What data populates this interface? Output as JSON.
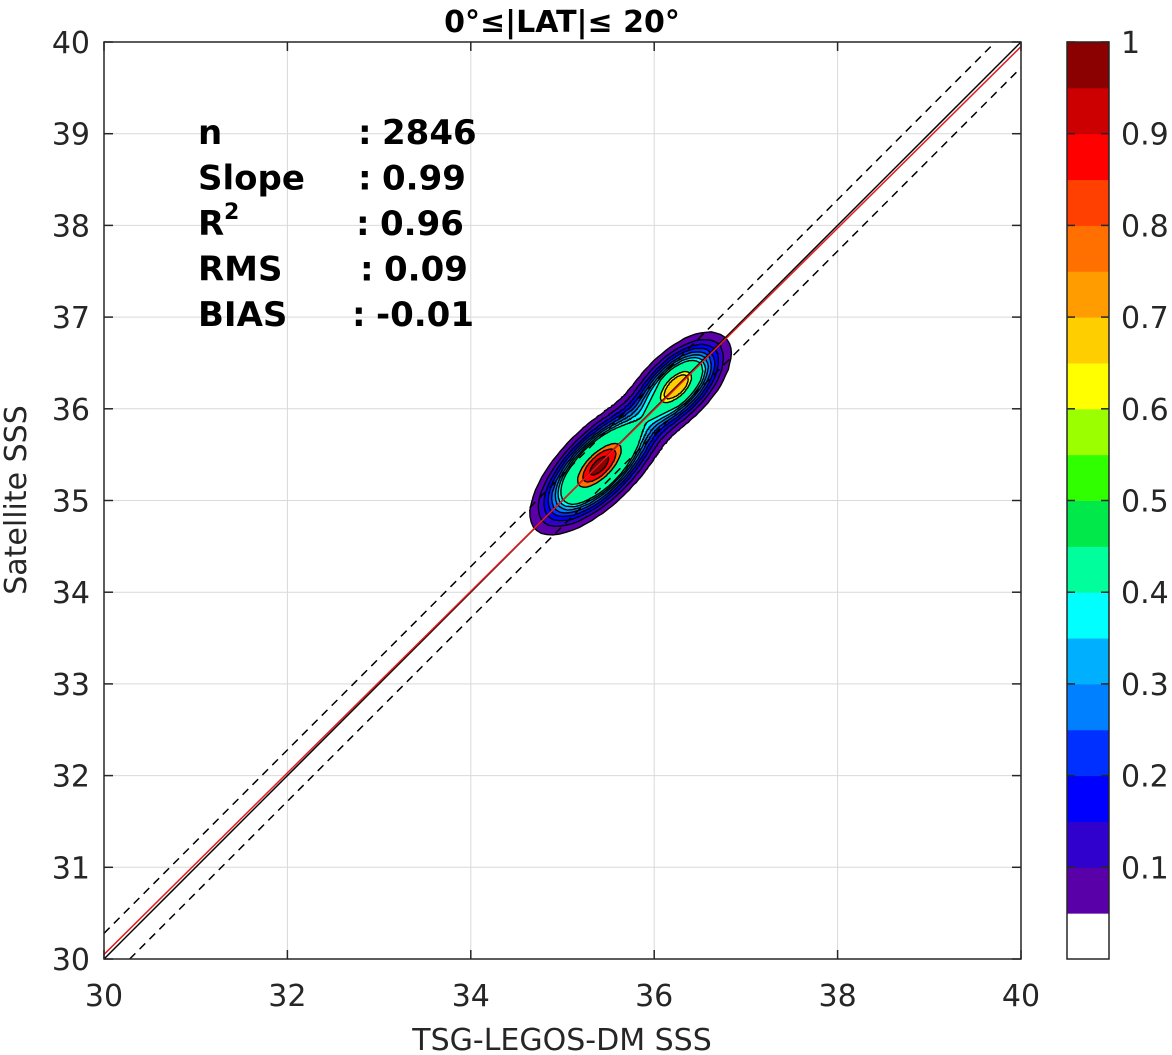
{
  "chart_data": {
    "type": "density-contour",
    "title": "0°≤|LAT|≤ 20°",
    "xlabel": "TSG-LEGOS-DM SSS",
    "ylabel": "Satellite SSS",
    "xlim": [
      30,
      40
    ],
    "ylim": [
      30,
      40
    ],
    "xticks": [
      30,
      32,
      34,
      36,
      38,
      40
    ],
    "yticks": [
      30,
      31,
      32,
      33,
      34,
      35,
      36,
      37,
      38,
      39,
      40
    ],
    "grid": true,
    "stats": [
      {
        "label": "n",
        "sep": ":",
        "value": "2846"
      },
      {
        "label": "Slope",
        "sep": ":",
        "value": "0.99"
      },
      {
        "label": "R",
        "sup": "2",
        "sep": ":",
        "value": "0.96"
      },
      {
        "label": "RMS",
        "sep": ":",
        "value": "0.09"
      },
      {
        "label": "BIAS",
        "sep": ":",
        "value": "-0.01"
      }
    ],
    "reference_lines": [
      {
        "name": "1:1",
        "color": "#000000",
        "style": "solid",
        "points": [
          [
            30,
            30
          ],
          [
            40,
            40
          ]
        ]
      },
      {
        "name": "regression",
        "color": "#e41a1c",
        "style": "solid",
        "points": [
          [
            30,
            30.05
          ],
          [
            40,
            39.95
          ]
        ]
      },
      {
        "name": "upper bound",
        "color": "#000000",
        "style": "dashed",
        "points": [
          [
            30,
            30.28
          ],
          [
            40,
            40.28
          ]
        ]
      },
      {
        "name": "lower bound",
        "color": "#000000",
        "style": "dashed",
        "points": [
          [
            30.28,
            30
          ],
          [
            40,
            39.72
          ]
        ]
      }
    ],
    "density": {
      "peaks": [
        {
          "x": 35.4,
          "y": 35.38,
          "value": 1.0
        },
        {
          "x": 36.25,
          "y": 36.25,
          "value": 0.72
        }
      ],
      "along_ridge_spread": [
        35.0,
        36.6
      ],
      "levels": [
        0.05,
        0.1,
        0.15,
        0.2,
        0.25,
        0.3,
        0.35,
        0.4,
        0.45,
        0.5,
        0.55,
        0.6,
        0.65,
        0.7,
        0.75,
        0.8,
        0.85,
        0.9,
        0.95
      ]
    },
    "colorbar": {
      "range": [
        0,
        1
      ],
      "ticks": [
        0.1,
        0.2,
        0.3,
        0.4,
        0.5,
        0.6,
        0.7,
        0.8,
        0.9,
        1
      ],
      "tick_labels": [
        "0.1",
        "0.2",
        "0.3",
        "0.4",
        "0.5",
        "0.6",
        "0.7",
        "0.8",
        "0.9",
        "1"
      ],
      "colors": [
        "#ffffff",
        "#5a00a8",
        "#3000cc",
        "#0000ff",
        "#0030ff",
        "#0080ff",
        "#00b0ff",
        "#00ffff",
        "#00ff9c",
        "#00e84a",
        "#30ff00",
        "#9cff00",
        "#ffff00",
        "#ffce00",
        "#ff9c00",
        "#ff7000",
        "#ff4000",
        "#ff0000",
        "#cc0000",
        "#8b0000"
      ]
    }
  }
}
